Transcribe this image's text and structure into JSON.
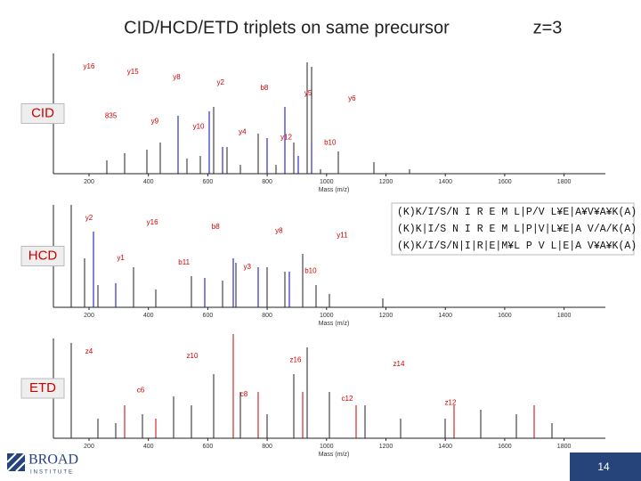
{
  "header": {
    "title": "CID/HCD/ETD triplets on same precursor",
    "charge": "z=3"
  },
  "panels": [
    {
      "label": "CID",
      "ions": [
        "y16",
        "835",
        "y15",
        "y9",
        "y8",
        "y10",
        "y2",
        "y4",
        "b8",
        "y12",
        "y5",
        "b10",
        "y6"
      ],
      "ticks": [
        "200",
        "400",
        "600",
        "800",
        "1000",
        "1200",
        "1400",
        "1600",
        "1800"
      ],
      "xlabel": "Mass (m/z)"
    },
    {
      "label": "HCD",
      "ions": [
        "y2",
        "y1",
        "y16",
        "b11",
        "b8",
        "y3",
        "y8",
        "b10",
        "y11"
      ],
      "ticks": [
        "200",
        "400",
        "600",
        "800",
        "1000",
        "1200",
        "1400",
        "1600",
        "1800"
      ],
      "xlabel": "Mass (m/z)"
    },
    {
      "label": "ETD",
      "ions": [
        "z4",
        "c6",
        "z10",
        "c8",
        "z16",
        "c12",
        "z14",
        "z12"
      ],
      "ticks": [
        "200",
        "400",
        "600",
        "800",
        "1000",
        "1200",
        "1400",
        "1600",
        "1800"
      ],
      "xlabel": "Mass (m/z)"
    }
  ],
  "sequences": [
    "(K)K/I/S/N I R E M L|P/V L¥E|A¥V¥A¥K(A)",
    "(K)K|I/S N I R E M L|P|V|L¥E|A V/A/K(A)",
    "(K)K/I/S/N|I|R|E|M¥L P V L|E|A V¥A¥K(A)"
  ],
  "footer": {
    "logo": "BROAD",
    "logo_sub": "INSTITUTE",
    "page": "14"
  }
}
